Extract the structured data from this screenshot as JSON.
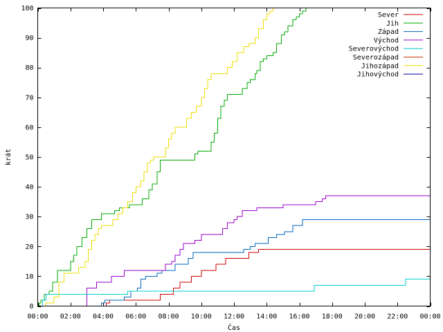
{
  "chart_data": {
    "type": "line",
    "step": true,
    "title": "",
    "xlabel": "Čas",
    "ylabel": "krát",
    "xlim": [
      0,
      24
    ],
    "ylim": [
      0,
      100
    ],
    "x_ticks": [
      0,
      2,
      4,
      6,
      8,
      10,
      12,
      14,
      16,
      18,
      20,
      22,
      24
    ],
    "x_tick_labels": [
      "00:00",
      "02:00",
      "04:00",
      "06:00",
      "08:00",
      "10:00",
      "12:00",
      "14:00",
      "16:00",
      "18:00",
      "20:00",
      "22:00",
      "00:00"
    ],
    "y_ticks": [
      0,
      10,
      20,
      30,
      40,
      50,
      60,
      70,
      80,
      90,
      100
    ],
    "y_tick_labels": [
      "0",
      "10",
      "20",
      "30",
      "40",
      "50",
      "60",
      "70",
      "80",
      "90",
      "100"
    ],
    "grid": false,
    "legend_position": "top-right",
    "series": [
      {
        "name": "Sever",
        "color": "#cc0000",
        "points": [
          [
            0,
            0
          ],
          [
            3.0,
            0
          ],
          [
            4.2,
            1
          ],
          [
            4.4,
            2
          ],
          [
            7.3,
            2
          ],
          [
            7.5,
            4
          ],
          [
            8.1,
            4
          ],
          [
            8.3,
            6
          ],
          [
            8.7,
            8
          ],
          [
            9.2,
            8
          ],
          [
            9.4,
            10
          ],
          [
            10.0,
            12
          ],
          [
            10.7,
            12
          ],
          [
            10.9,
            14
          ],
          [
            11.5,
            16
          ],
          [
            12.8,
            16
          ],
          [
            12.9,
            18
          ],
          [
            13.5,
            19
          ],
          [
            24,
            19
          ]
        ]
      },
      {
        "name": "Jih",
        "color": "#00aa00",
        "points": [
          [
            0,
            0
          ],
          [
            0.1,
            1
          ],
          [
            0.2,
            2
          ],
          [
            0.4,
            4
          ],
          [
            0.7,
            5
          ],
          [
            0.9,
            8
          ],
          [
            1.2,
            12
          ],
          [
            1.8,
            12
          ],
          [
            2.0,
            15
          ],
          [
            2.2,
            17
          ],
          [
            2.4,
            20
          ],
          [
            2.7,
            23
          ],
          [
            3.0,
            26
          ],
          [
            3.3,
            29
          ],
          [
            3.7,
            29
          ],
          [
            3.9,
            31
          ],
          [
            4.5,
            31
          ],
          [
            4.7,
            32
          ],
          [
            5.0,
            33
          ],
          [
            5.6,
            34
          ],
          [
            6.2,
            34
          ],
          [
            6.4,
            36
          ],
          [
            6.8,
            39
          ],
          [
            7.0,
            41
          ],
          [
            7.3,
            45
          ],
          [
            7.5,
            49
          ],
          [
            9.4,
            49
          ],
          [
            9.6,
            51
          ],
          [
            9.8,
            52
          ],
          [
            10.4,
            52
          ],
          [
            10.6,
            55
          ],
          [
            10.8,
            58
          ],
          [
            11.0,
            63
          ],
          [
            11.2,
            67
          ],
          [
            11.4,
            69
          ],
          [
            11.6,
            71
          ],
          [
            12.3,
            71
          ],
          [
            12.5,
            73
          ],
          [
            12.8,
            75
          ],
          [
            13.0,
            76
          ],
          [
            13.3,
            78
          ],
          [
            13.4,
            79
          ],
          [
            13.6,
            82
          ],
          [
            13.8,
            83
          ],
          [
            14.0,
            84
          ],
          [
            14.4,
            85
          ],
          [
            14.6,
            88
          ],
          [
            14.9,
            91
          ],
          [
            15.1,
            92
          ],
          [
            15.3,
            94
          ],
          [
            15.6,
            96
          ],
          [
            15.8,
            97
          ],
          [
            16.0,
            98
          ],
          [
            16.2,
            99
          ],
          [
            16.4,
            100
          ],
          [
            24,
            100
          ]
        ]
      },
      {
        "name": "Západ",
        "color": "#0066bb",
        "points": [
          [
            0,
            0
          ],
          [
            3.8,
            0
          ],
          [
            3.9,
            1
          ],
          [
            4.1,
            2
          ],
          [
            5.1,
            2
          ],
          [
            5.3,
            3
          ],
          [
            5.7,
            5
          ],
          [
            6.1,
            6
          ],
          [
            6.3,
            9
          ],
          [
            6.6,
            10
          ],
          [
            7.0,
            10
          ],
          [
            7.3,
            11
          ],
          [
            7.6,
            12
          ],
          [
            8.2,
            12
          ],
          [
            8.4,
            14
          ],
          [
            9.0,
            14
          ],
          [
            9.2,
            16
          ],
          [
            9.5,
            18
          ],
          [
            12.3,
            18
          ],
          [
            12.6,
            19
          ],
          [
            13.0,
            20
          ],
          [
            13.3,
            21
          ],
          [
            13.8,
            21
          ],
          [
            14.1,
            23
          ],
          [
            14.6,
            24
          ],
          [
            15.1,
            25
          ],
          [
            15.6,
            27
          ],
          [
            16.0,
            27
          ],
          [
            16.2,
            29
          ],
          [
            24,
            29
          ]
        ]
      },
      {
        "name": "Východ",
        "color": "#9900cc",
        "points": [
          [
            0,
            0
          ],
          [
            2.8,
            0
          ],
          [
            3.0,
            6
          ],
          [
            3.4,
            6
          ],
          [
            3.6,
            8
          ],
          [
            4.3,
            8
          ],
          [
            4.5,
            10
          ],
          [
            5.1,
            10
          ],
          [
            5.3,
            12
          ],
          [
            5.8,
            12
          ],
          [
            6.0,
            12
          ],
          [
            7.5,
            12
          ],
          [
            7.8,
            14
          ],
          [
            8.2,
            15
          ],
          [
            8.4,
            17
          ],
          [
            8.7,
            19
          ],
          [
            8.9,
            21
          ],
          [
            9.6,
            22
          ],
          [
            10.0,
            24
          ],
          [
            11.1,
            24
          ],
          [
            11.3,
            26
          ],
          [
            11.6,
            28
          ],
          [
            12.0,
            29
          ],
          [
            12.2,
            30
          ],
          [
            12.5,
            32
          ],
          [
            13.1,
            32
          ],
          [
            13.4,
            33
          ],
          [
            14.8,
            33
          ],
          [
            15.0,
            34
          ],
          [
            16.7,
            34
          ],
          [
            17.0,
            35
          ],
          [
            17.4,
            36
          ],
          [
            17.6,
            37
          ],
          [
            24,
            37
          ]
        ]
      },
      {
        "name": "Severovýchod",
        "color": "#00cccc",
        "points": [
          [
            0,
            0
          ],
          [
            0.3,
            2
          ],
          [
            0.5,
            4
          ],
          [
            5.3,
            4
          ],
          [
            5.5,
            5
          ],
          [
            16.6,
            5
          ],
          [
            16.9,
            7
          ],
          [
            22.2,
            7
          ],
          [
            22.5,
            9
          ],
          [
            24,
            9
          ]
        ]
      },
      {
        "name": "Severozápad",
        "color": "#cc3300",
        "points": [
          [
            0,
            0
          ],
          [
            24,
            0
          ]
        ]
      },
      {
        "name": "Jihozápad",
        "color": "#eedd00",
        "points": [
          [
            0,
            0
          ],
          [
            0.5,
            1
          ],
          [
            1.0,
            3
          ],
          [
            1.3,
            8
          ],
          [
            1.6,
            11
          ],
          [
            2.3,
            11
          ],
          [
            2.5,
            13
          ],
          [
            2.9,
            15
          ],
          [
            3.1,
            19
          ],
          [
            3.3,
            22
          ],
          [
            3.5,
            24
          ],
          [
            3.7,
            26
          ],
          [
            3.9,
            27
          ],
          [
            4.4,
            27
          ],
          [
            4.6,
            29
          ],
          [
            4.9,
            31
          ],
          [
            5.2,
            33
          ],
          [
            5.5,
            35
          ],
          [
            5.8,
            38
          ],
          [
            6.0,
            40
          ],
          [
            6.3,
            42
          ],
          [
            6.5,
            45
          ],
          [
            6.7,
            48
          ],
          [
            6.9,
            49
          ],
          [
            7.1,
            50
          ],
          [
            7.6,
            50
          ],
          [
            7.8,
            53
          ],
          [
            8.0,
            56
          ],
          [
            8.2,
            58
          ],
          [
            8.4,
            60
          ],
          [
            8.9,
            60
          ],
          [
            9.1,
            63
          ],
          [
            9.4,
            65
          ],
          [
            9.7,
            67
          ],
          [
            10.0,
            70
          ],
          [
            10.2,
            73
          ],
          [
            10.4,
            76
          ],
          [
            10.6,
            78
          ],
          [
            11.4,
            78
          ],
          [
            11.6,
            80
          ],
          [
            11.9,
            82
          ],
          [
            12.2,
            85
          ],
          [
            12.6,
            87
          ],
          [
            12.9,
            88
          ],
          [
            13.3,
            90
          ],
          [
            13.5,
            93
          ],
          [
            13.8,
            96
          ],
          [
            14.0,
            98
          ],
          [
            14.2,
            99
          ],
          [
            14.4,
            100
          ],
          [
            24,
            100
          ]
        ]
      },
      {
        "name": "Jihovýchod",
        "color": "#000099",
        "points": [
          [
            0,
            0
          ],
          [
            24,
            0
          ]
        ]
      }
    ]
  }
}
